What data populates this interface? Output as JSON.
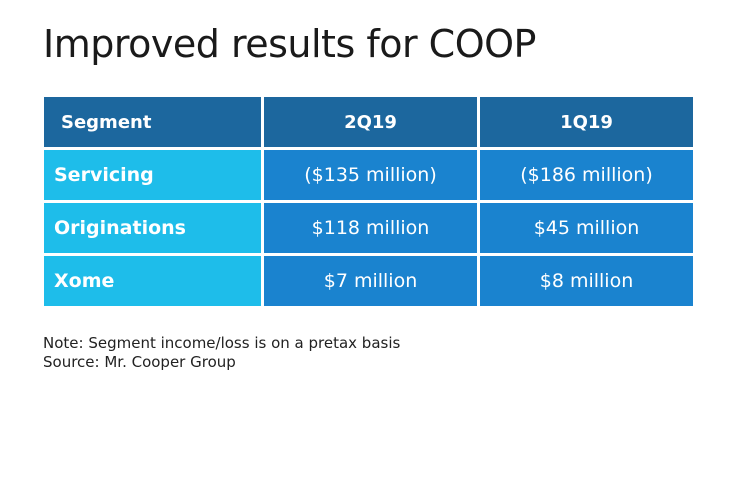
{
  "title": "Improved results for COOP",
  "chart_data": {
    "type": "table",
    "columns": [
      "Segment",
      "2Q19",
      "1Q19"
    ],
    "rows": [
      [
        "Servicing",
        "($135 million)",
        "($186 million)"
      ],
      [
        "Originations",
        "$118 million",
        "$45 million"
      ],
      [
        "Xome",
        "$7 million",
        "$8 million"
      ]
    ],
    "values_millions": {
      "2Q19": [
        -135,
        118,
        7
      ],
      "1Q19": [
        -186,
        45,
        8
      ]
    },
    "colors": {
      "header": "#1c679e",
      "segment_column": "#1ebdea",
      "value_cells": "#1a83cf"
    }
  },
  "note": "Note: Segment income/loss is on a pretax basis",
  "source": "Source: Mr. Cooper Group"
}
